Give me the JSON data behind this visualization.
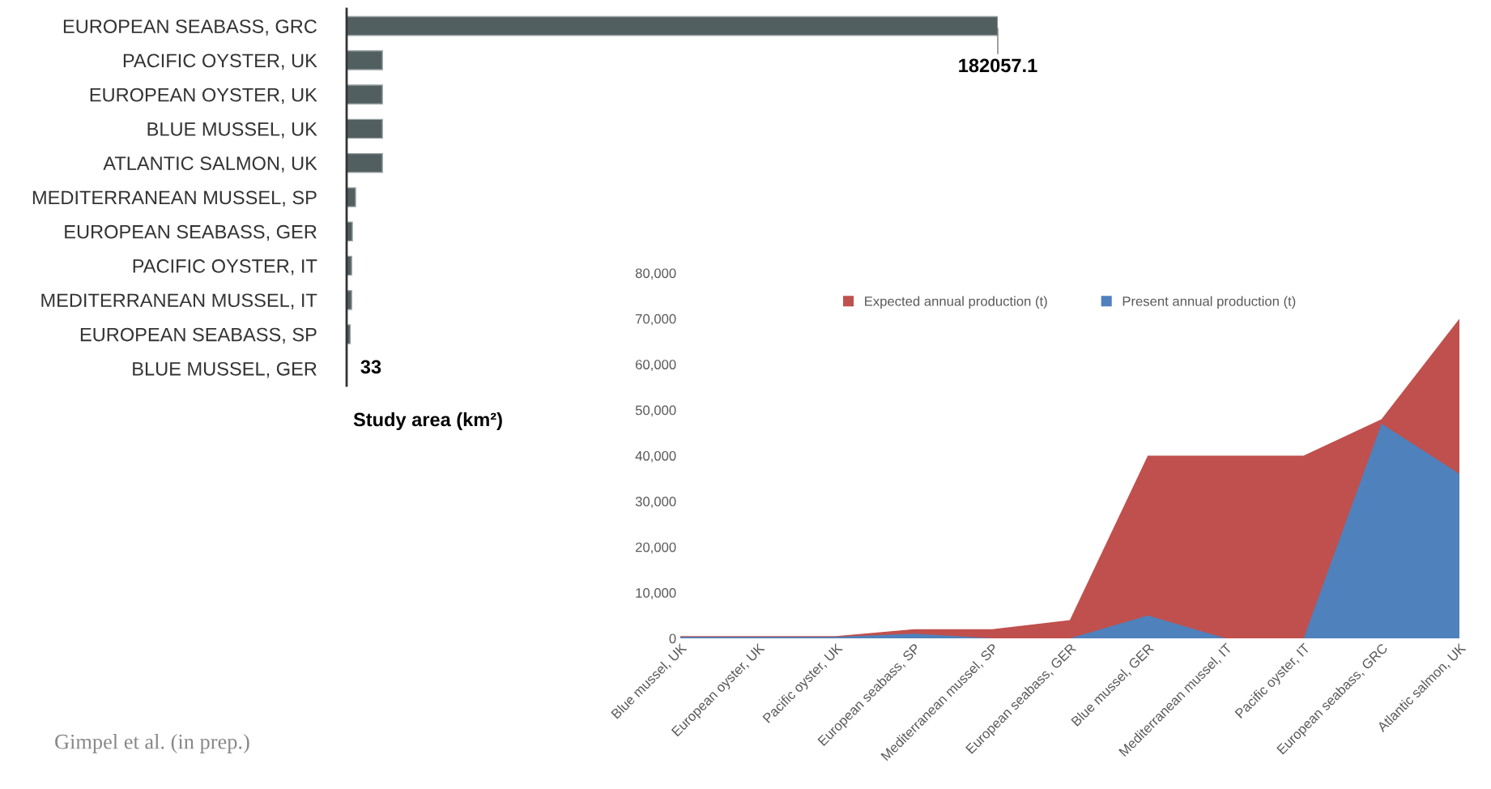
{
  "chart_data": [
    {
      "type": "bar",
      "orientation": "horizontal",
      "xlabel": "Study area (km²)",
      "categories": [
        "EUROPEAN SEABASS, GRC",
        "PACIFIC OYSTER, UK",
        "EUROPEAN OYSTER, UK",
        "BLUE MUSSEL, UK",
        "ATLANTIC SALMON, UK",
        "MEDITERRANEAN MUSSEL, SP",
        "EUROPEAN SEABASS, GER",
        "PACIFIC OYSTER, IT",
        "MEDITERRANEAN MUSSEL, IT",
        "EUROPEAN SEABASS, SP",
        "BLUE MUSSEL, GER"
      ],
      "values": [
        182057.1,
        10000,
        10000,
        10000,
        10000,
        2500,
        1600,
        1400,
        1400,
        1000,
        33
      ],
      "value_labels": [
        "182057.1",
        null,
        null,
        null,
        null,
        null,
        null,
        null,
        null,
        null,
        "33"
      ],
      "color": "#525f60",
      "tick_labels": "y",
      "annotations": [
        "Gimpel et al. (in prep.)"
      ]
    },
    {
      "type": "area",
      "categories": [
        "Blue mussel, UK",
        "European oyster, UK",
        "Pacific oyster, UK",
        "European seabass, SP",
        "Mediterranean mussel, SP",
        "European seabass, GER",
        "Blue mussel, GER",
        "Mediterranean mussel, IT",
        "Pacific oyster, IT",
        "European seabass, GRC",
        "Atlantic salmon, UK"
      ],
      "series": [
        {
          "name": "Expected annual production (t)",
          "color": "#c0504d",
          "values": [
            500,
            500,
            500,
            2000,
            2000,
            4000,
            40000,
            40000,
            40000,
            48000,
            70000
          ]
        },
        {
          "name": "Present annual production (t)",
          "color": "#4f81bd",
          "values": [
            300,
            300,
            300,
            1000,
            0,
            0,
            5000,
            0,
            0,
            47000,
            36000
          ]
        }
      ],
      "ylim": [
        0,
        80000
      ],
      "yticks": [
        {
          "value": 0,
          "label": "0"
        },
        {
          "value": 10000,
          "label": "10,000"
        },
        {
          "value": 20000,
          "label": "20,000"
        },
        {
          "value": 30000,
          "label": "30,000"
        },
        {
          "value": 40000,
          "label": "40,000"
        },
        {
          "value": 50000,
          "label": "50,000"
        },
        {
          "value": 60000,
          "label": "60,000"
        },
        {
          "value": 70000,
          "label": "70,000"
        },
        {
          "value": 80000,
          "label": "80,000"
        }
      ],
      "legend": "top"
    }
  ]
}
